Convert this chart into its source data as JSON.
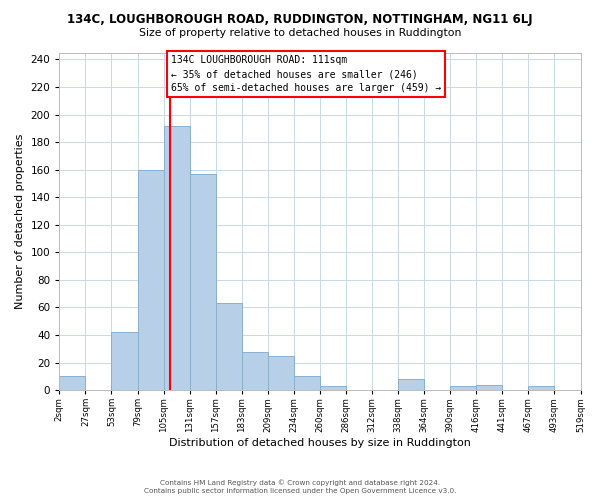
{
  "title_line1": "134C, LOUGHBOROUGH ROAD, RUDDINGTON, NOTTINGHAM, NG11 6LJ",
  "title_line2": "Size of property relative to detached houses in Ruddington",
  "xlabel": "Distribution of detached houses by size in Ruddington",
  "ylabel": "Number of detached properties",
  "tick_labels": [
    "2sqm",
    "27sqm",
    "53sqm",
    "79sqm",
    "105sqm",
    "131sqm",
    "157sqm",
    "183sqm",
    "209sqm",
    "234sqm",
    "260sqm",
    "286sqm",
    "312sqm",
    "338sqm",
    "364sqm",
    "390sqm",
    "416sqm",
    "441sqm",
    "467sqm",
    "493sqm",
    "519sqm"
  ],
  "bar_heights": [
    10,
    0,
    42,
    160,
    192,
    157,
    63,
    28,
    25,
    10,
    3,
    0,
    0,
    8,
    0,
    3,
    4,
    0,
    3,
    0
  ],
  "bar_color": "#b8cfe8",
  "bar_edge_color": "#8ab0d0",
  "marker_bin": 4,
  "marker_color": "red",
  "ylim": [
    0,
    245
  ],
  "yticks": [
    0,
    20,
    40,
    60,
    80,
    100,
    120,
    140,
    160,
    180,
    200,
    220,
    240
  ],
  "annotation_text_line1": "134C LOUGHBOROUGH ROAD: 111sqm",
  "annotation_text_line2": "← 35% of detached houses are smaller (246)",
  "annotation_text_line3": "65% of semi-detached houses are larger (459) →",
  "footer_line1": "Contains HM Land Registry data © Crown copyright and database right 2024.",
  "footer_line2": "Contains public sector information licensed under the Open Government Licence v3.0.",
  "background_color": "#ffffff",
  "grid_color": "#c8d8e8"
}
